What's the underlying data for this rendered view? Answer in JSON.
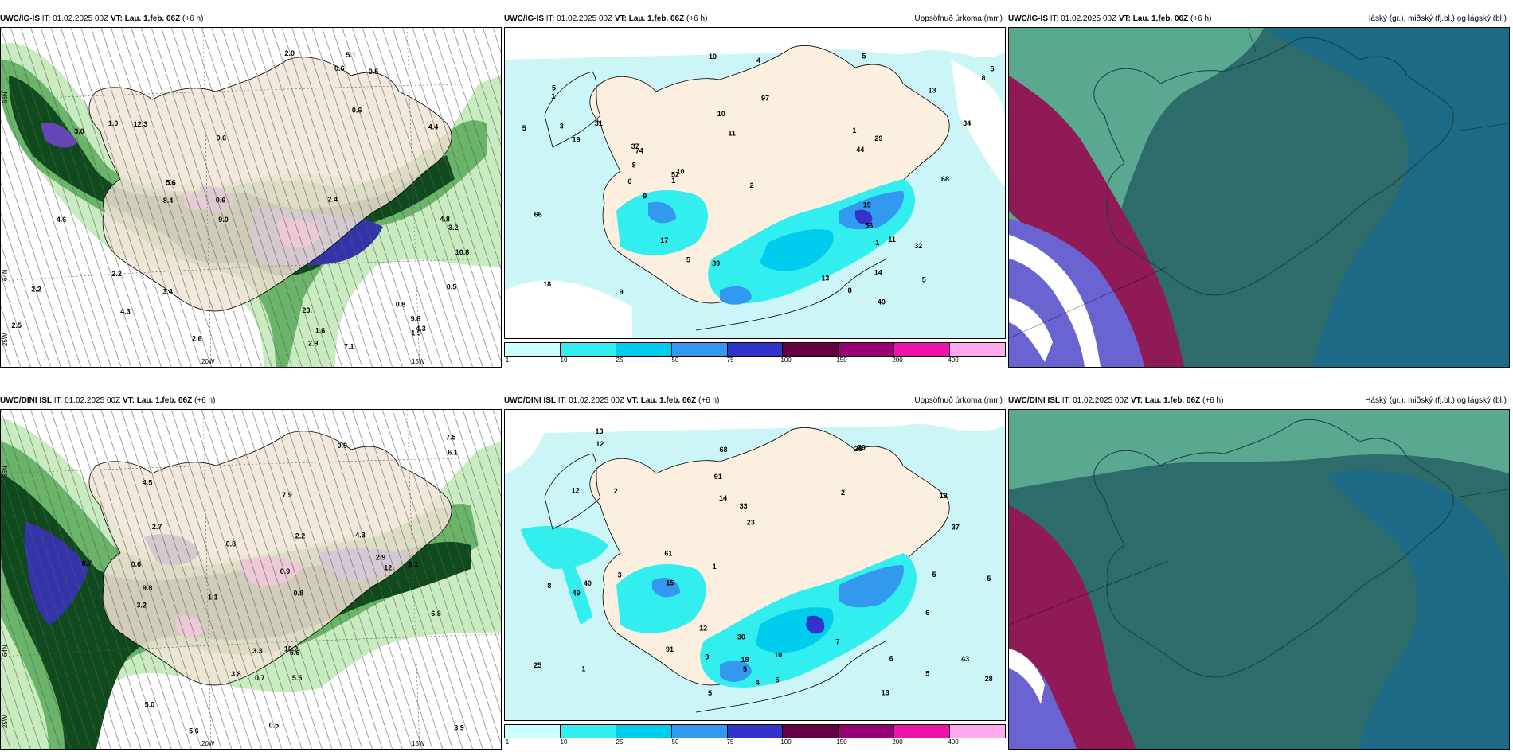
{
  "panels": [
    {
      "id": "p1",
      "model": "UWC/IG-IS",
      "it_label": "IT:",
      "it": "01.02.2025 00Z",
      "vt_label": "VT:",
      "vt": "Lau. 1.feb. 06Z",
      "lead": "(+6 h)",
      "right_title": ""
    },
    {
      "id": "p2",
      "model": "UWC/IG-IS",
      "it_label": "IT:",
      "it": "01.02.2025 00Z",
      "vt_label": "VT:",
      "vt": "Lau. 1.feb. 06Z",
      "lead": "(+6 h)",
      "right_title": "Uppsöfnuð úrkoma (mm)"
    },
    {
      "id": "p3",
      "model": "UWC/IG-IS",
      "it_label": "IT:",
      "it": "01.02.2025 00Z",
      "vt_label": "VT:",
      "vt": "Lau. 1.feb. 06Z",
      "lead": "(+6 h)",
      "right_title": "Háský (gr.), miðský (fj.bl.) og lágský (bl.)"
    },
    {
      "id": "p4",
      "model": "UWC/DINI ISL",
      "it_label": "IT:",
      "it": "01.02.2025 00Z",
      "vt_label": "VT:",
      "vt": "Lau. 1.feb. 06Z",
      "lead": "(+6 h)",
      "right_title": ""
    },
    {
      "id": "p5",
      "model": "UWC/DINI ISL",
      "it_label": "IT:",
      "it": "01.02.2025 00Z",
      "vt_label": "VT:",
      "vt": "Lau. 1.feb. 06Z",
      "lead": "(+6 h)",
      "right_title": "Uppsöfnuð úrkoma (mm)"
    },
    {
      "id": "p6",
      "model": "UWC/DINI ISL",
      "it_label": "IT:",
      "it": "01.02.2025 00Z",
      "vt_label": "VT:",
      "vt": "Lau. 1.feb. 06Z",
      "lead": "(+6 h)",
      "right_title": "Háský (gr.), miðský (fj.bl.) og lágský (bl.)"
    }
  ],
  "axis_labels": {
    "lon_20w": "20W",
    "lon_15w": "15W",
    "lon_25w": "25W",
    "lat_66n": "66N",
    "lat_64n": "64N"
  },
  "colorbar": {
    "ticks": [
      "1",
      "10",
      "25",
      "50",
      "75",
      "100",
      "150",
      "200",
      "400"
    ],
    "colors": [
      "#ccffff",
      "#33eeee",
      "#00ccee",
      "#3399ee",
      "#3333cc",
      "#660044",
      "#990077",
      "#ee11aa",
      "#ffaaee"
    ]
  },
  "colors": {
    "land": "#f1e4d6",
    "sea_precip": "#ccf5f7",
    "green_light": "#c8ecc0",
    "green_mid": "#6ab56a",
    "green_dark": "#0f4a1c",
    "cloud_teal": "#2e6b6b",
    "cloud_blue": "#1d6a86",
    "cloud_mint": "#5aa890",
    "cloud_magenta": "#8f1a55",
    "cloud_violet": "#6a64d2"
  },
  "labels": {
    "p1": [
      "1.6",
      "2.4",
      "3.0",
      "4.6",
      "4.3",
      "2.9",
      "2.2",
      "4.8",
      "5.6",
      "3.4",
      "2.5",
      "2.0",
      "0.5",
      "4.4",
      "5.1",
      "9.8",
      "4.3",
      "2.2",
      "3.2",
      "12.3",
      "10.8",
      "8.4",
      "9.0",
      "7.1",
      "2.6",
      "0.6",
      "0.6",
      "0.6",
      "0.6",
      "1.0",
      "0.8",
      "0.5",
      "23.",
      "1.9"
    ],
    "p2": [
      "10",
      "10",
      "11",
      "14",
      "3",
      "1",
      "9",
      "8",
      "8",
      "9",
      "10",
      "13",
      "34",
      "44",
      "37",
      "40",
      "6",
      "32",
      "5",
      "17",
      "29",
      "66",
      "74",
      "52",
      "31",
      "39",
      "68",
      "19",
      "19",
      "11",
      "18",
      "1",
      "1",
      "2",
      "4",
      "13",
      "5",
      "5",
      "5",
      "5",
      "5",
      "8",
      "56",
      "97",
      "1"
    ],
    "p4": [
      "0.9",
      "2.7",
      "3.9",
      "5.6",
      "3.8",
      "4.5",
      "5.6",
      "3.3",
      "5.0",
      "3.2",
      "2.9",
      "9.8",
      "5.5",
      "7.9",
      "2.2",
      "0.9",
      "0.6",
      "10.2",
      "6.8",
      "0.7",
      "0.5",
      "0.7",
      "0.8",
      "6.1",
      "7.5",
      "6.1",
      "12.",
      "1.1",
      "0.8",
      "4.3"
    ],
    "p5": [
      "6",
      "9",
      "10",
      "12",
      "13",
      "15",
      "18",
      "2",
      "1",
      "14",
      "5",
      "13",
      "8",
      "23",
      "37",
      "40",
      "25",
      "28",
      "5",
      "18",
      "26",
      "43",
      "49",
      "68",
      "91",
      "61",
      "33",
      "30",
      "12",
      "12",
      "20",
      "7",
      "6",
      "5",
      "4",
      "5",
      "5",
      "3",
      "5",
      "91",
      "1",
      "2"
    ]
  },
  "chart_data": []
}
